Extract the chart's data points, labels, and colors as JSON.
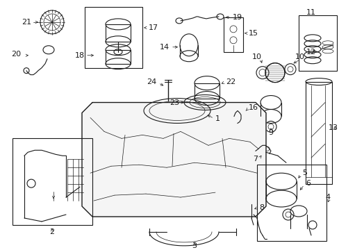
{
  "bg_color": "#ffffff",
  "line_color": "#1a1a1a",
  "figsize": [
    4.89,
    3.6
  ],
  "dpi": 100,
  "gray": "#888888",
  "light_gray": "#cccccc"
}
